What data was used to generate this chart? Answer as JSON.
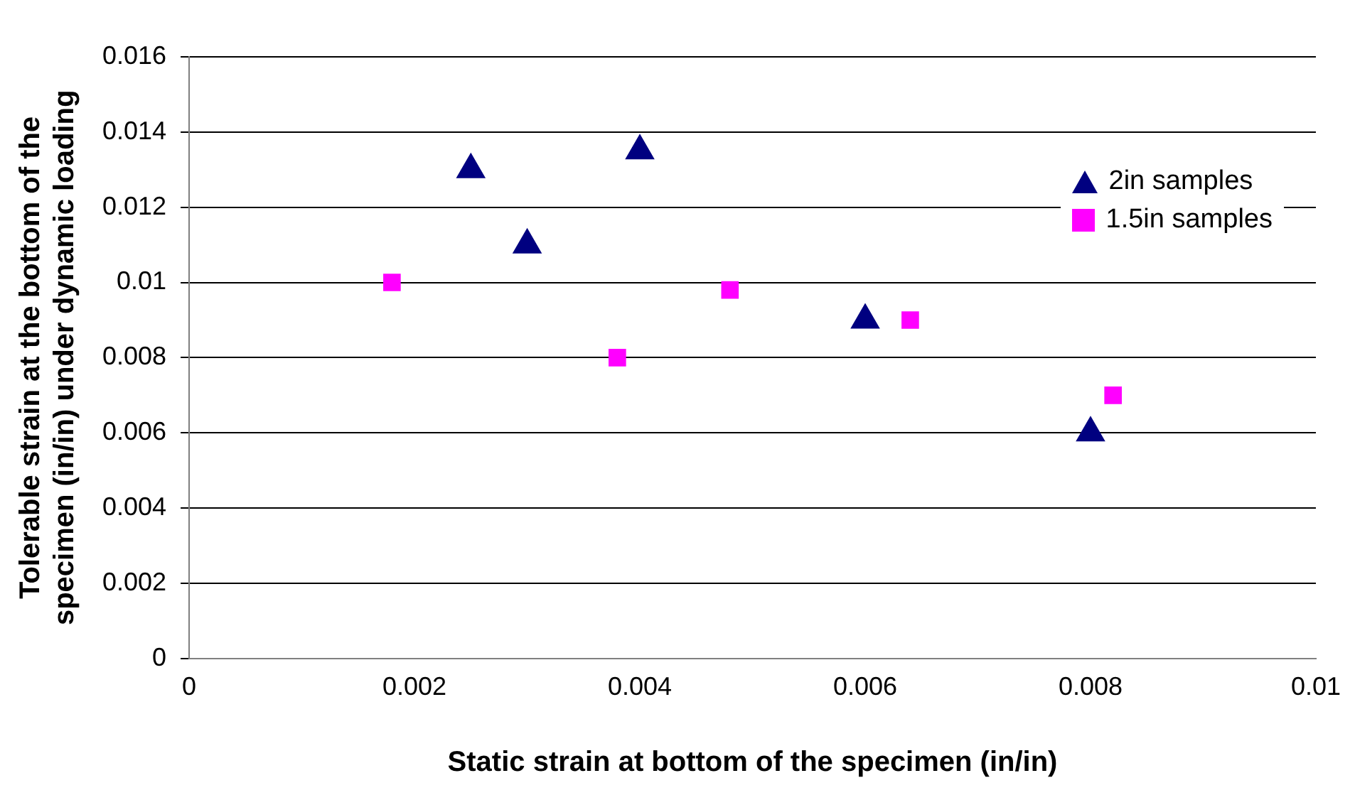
{
  "chart_data": {
    "type": "scatter",
    "xlabel": "Static strain at bottom of the specimen (in/in)",
    "ylabel": "Tolerable strain at the bottom of the specimen (in/in) under dynamic loading",
    "xlim": [
      0,
      0.01
    ],
    "xticks": [
      0,
      0.002,
      0.004,
      0.006,
      0.008,
      0.01
    ],
    "ylim": [
      0,
      0.016
    ],
    "yticks": [
      0,
      0.002,
      0.004,
      0.006,
      0.008,
      0.01,
      0.012,
      0.014,
      0.016
    ],
    "grid": "y",
    "legend": "top right",
    "series": [
      {
        "name": "2in samples",
        "color": "#000080",
        "marker": "triangle",
        "x": [
          0.0025,
          0.003,
          0.004,
          0.006,
          0.008
        ],
        "values": [
          0.013,
          0.011,
          0.0135,
          0.009,
          0.006
        ]
      },
      {
        "name": "1.5in samples",
        "color": "#ff00ff",
        "marker": "square",
        "x": [
          0.0018,
          0.0038,
          0.0048,
          0.0064,
          0.0082
        ],
        "values": [
          0.01,
          0.008,
          0.0098,
          0.009,
          0.007
        ]
      }
    ]
  }
}
